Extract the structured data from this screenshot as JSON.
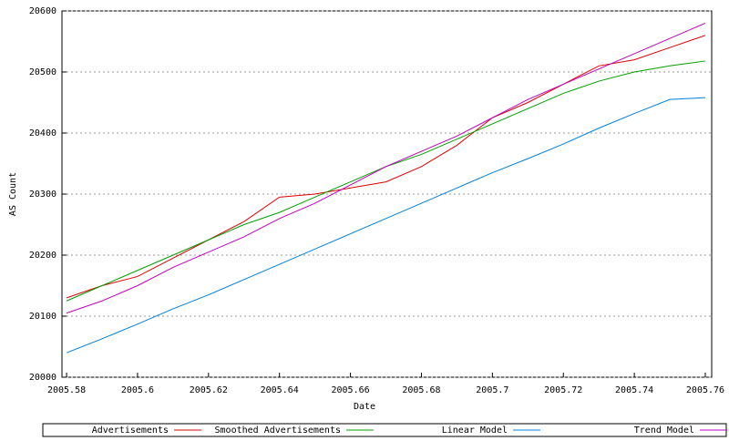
{
  "chart_data": {
    "type": "line",
    "x_label": "Date",
    "y_label": "AS Count",
    "x": [
      2005.58,
      2005.59,
      2005.6,
      2005.61,
      2005.62,
      2005.63,
      2005.64,
      2005.65,
      2005.66,
      2005.67,
      2005.68,
      2005.69,
      2005.7,
      2005.71,
      2005.72,
      2005.73,
      2005.74,
      2005.75,
      2005.76
    ],
    "series": [
      {
        "name": "Advertisements",
        "color": "#e00000",
        "values": [
          20130,
          20150,
          20165,
          20195,
          20225,
          20255,
          20295,
          20300,
          20310,
          20320,
          20345,
          20380,
          20425,
          20450,
          20480,
          20510,
          20520,
          20540,
          20560
        ]
      },
      {
        "name": "Smoothed Advertisements",
        "color": "#00a000",
        "values": [
          20125,
          20150,
          20175,
          20200,
          20225,
          20250,
          20270,
          20295,
          20320,
          20345,
          20365,
          20390,
          20415,
          20440,
          20465,
          20485,
          20500,
          20510,
          20518
        ]
      },
      {
        "name": "Linear Model",
        "color": "#0080e0",
        "values": [
          20040,
          20063,
          20087,
          20112,
          20135,
          20160,
          20185,
          20210,
          20235,
          20260,
          20285,
          20310,
          20335,
          20358,
          20382,
          20408,
          20432,
          20455,
          20458
        ]
      },
      {
        "name": "Trend Model",
        "color": "#c000c0",
        "values": [
          20105,
          20125,
          20150,
          20180,
          20205,
          20230,
          20260,
          20285,
          20315,
          20345,
          20370,
          20395,
          20425,
          20455,
          20480,
          20505,
          20530,
          20555,
          20580
        ]
      }
    ],
    "xlim": [
      2005.5787,
      2005.7618
    ],
    "ylim": [
      20000,
      20600
    ],
    "xticks": [
      2005.58,
      2005.6,
      2005.62,
      2005.64,
      2005.66,
      2005.68,
      2005.7,
      2005.72,
      2005.74,
      2005.76
    ],
    "yticks": [
      20000,
      20100,
      20200,
      20300,
      20400,
      20500,
      20600
    ],
    "grid": true,
    "legend": "bottom"
  }
}
